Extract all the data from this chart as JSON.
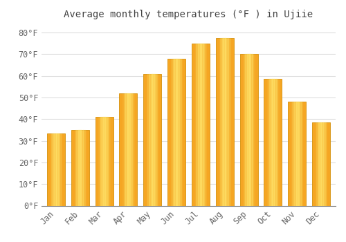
{
  "title": "Average monthly temperatures (°F ) in Ujiie",
  "months": [
    "Jan",
    "Feb",
    "Mar",
    "Apr",
    "May",
    "Jun",
    "Jul",
    "Aug",
    "Sep",
    "Oct",
    "Nov",
    "Dec"
  ],
  "values": [
    33.5,
    35.0,
    41.0,
    52.0,
    61.0,
    68.0,
    75.0,
    77.5,
    70.0,
    58.5,
    48.0,
    38.5
  ],
  "bar_color_center": "#FFD54F",
  "bar_color_edge": "#F5A623",
  "background_color": "#FFFFFF",
  "plot_background": "#FFFFFF",
  "ylim": [
    0,
    85
  ],
  "yticks": [
    0,
    10,
    20,
    30,
    40,
    50,
    60,
    70,
    80
  ],
  "ytick_labels": [
    "0°F",
    "10°F",
    "20°F",
    "30°F",
    "40°F",
    "50°F",
    "60°F",
    "70°F",
    "80°F"
  ],
  "grid_color": "#DDDDDD",
  "title_fontsize": 10,
  "tick_fontsize": 8.5,
  "bar_width": 0.75
}
